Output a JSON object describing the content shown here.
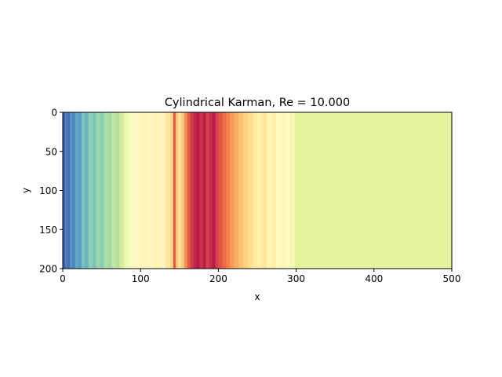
{
  "chart_data": {
    "type": "heatmap",
    "title": "Cylindrical Karman, Re = 10.000",
    "xlabel": "x",
    "ylabel": "y",
    "xlim": [
      0,
      500
    ],
    "ylim": [
      200,
      0
    ],
    "y_inverted": true,
    "x_ticks": [
      0,
      100,
      200,
      300,
      400,
      500
    ],
    "y_ticks": [
      0,
      50,
      100,
      150,
      200
    ],
    "colormap": "Spectral",
    "grid": false,
    "legend": "none",
    "field_varies_along": "x",
    "bands": [
      {
        "x0": 0,
        "x1": 3,
        "color": "#3b62ad"
      },
      {
        "x0": 3,
        "x1": 6,
        "color": "#4f7fb9"
      },
      {
        "x0": 6,
        "x1": 9,
        "color": "#3f6fb3"
      },
      {
        "x0": 9,
        "x1": 12,
        "color": "#5b90c0"
      },
      {
        "x0": 12,
        "x1": 16,
        "color": "#4a89bd"
      },
      {
        "x0": 16,
        "x1": 20,
        "color": "#66a7c4"
      },
      {
        "x0": 20,
        "x1": 24,
        "color": "#55a0c0"
      },
      {
        "x0": 24,
        "x1": 28,
        "color": "#7cc1bf"
      },
      {
        "x0": 28,
        "x1": 33,
        "color": "#6bb4c0"
      },
      {
        "x0": 33,
        "x1": 38,
        "color": "#8fcfb8"
      },
      {
        "x0": 38,
        "x1": 43,
        "color": "#7ec6bc"
      },
      {
        "x0": 43,
        "x1": 48,
        "color": "#9dd7a8"
      },
      {
        "x0": 48,
        "x1": 53,
        "color": "#88cdb4"
      },
      {
        "x0": 53,
        "x1": 58,
        "color": "#b0dea2"
      },
      {
        "x0": 58,
        "x1": 63,
        "color": "#a3d9a4"
      },
      {
        "x0": 63,
        "x1": 68,
        "color": "#c4e79e"
      },
      {
        "x0": 68,
        "x1": 73,
        "color": "#b5e0a0"
      },
      {
        "x0": 73,
        "x1": 79,
        "color": "#d6ee9c"
      },
      {
        "x0": 79,
        "x1": 85,
        "color": "#eef8b2"
      },
      {
        "x0": 85,
        "x1": 92,
        "color": "#f7fbc0"
      },
      {
        "x0": 92,
        "x1": 100,
        "color": "#fbf8c0"
      },
      {
        "x0": 100,
        "x1": 108,
        "color": "#fff5b8"
      },
      {
        "x0": 108,
        "x1": 116,
        "color": "#fdf7c2"
      },
      {
        "x0": 116,
        "x1": 124,
        "color": "#fff3b2"
      },
      {
        "x0": 124,
        "x1": 132,
        "color": "#fbf4bc"
      },
      {
        "x0": 132,
        "x1": 138,
        "color": "#fde7a0"
      },
      {
        "x0": 138,
        "x1": 142,
        "color": "#fdd888"
      },
      {
        "x0": 142,
        "x1": 145,
        "color": "#e8553e"
      },
      {
        "x0": 145,
        "x1": 148,
        "color": "#fdbf70"
      },
      {
        "x0": 148,
        "x1": 152,
        "color": "#fee79c"
      },
      {
        "x0": 152,
        "x1": 156,
        "color": "#fdc877"
      },
      {
        "x0": 156,
        "x1": 160,
        "color": "#f68f55"
      },
      {
        "x0": 160,
        "x1": 164,
        "color": "#e45a43"
      },
      {
        "x0": 164,
        "x1": 168,
        "color": "#cf3a4d"
      },
      {
        "x0": 168,
        "x1": 172,
        "color": "#c0254a"
      },
      {
        "x0": 172,
        "x1": 176,
        "color": "#b8174a"
      },
      {
        "x0": 176,
        "x1": 180,
        "color": "#cc344c"
      },
      {
        "x0": 180,
        "x1": 184,
        "color": "#b81c48"
      },
      {
        "x0": 184,
        "x1": 188,
        "color": "#d6404e"
      },
      {
        "x0": 188,
        "x1": 192,
        "color": "#c42c4a"
      },
      {
        "x0": 192,
        "x1": 196,
        "color": "#b01e46"
      },
      {
        "x0": 196,
        "x1": 200,
        "color": "#d43d4f"
      },
      {
        "x0": 200,
        "x1": 205,
        "color": "#e05545"
      },
      {
        "x0": 205,
        "x1": 210,
        "color": "#ec6a48"
      },
      {
        "x0": 210,
        "x1": 215,
        "color": "#f3824f"
      },
      {
        "x0": 215,
        "x1": 220,
        "color": "#f79a5c"
      },
      {
        "x0": 220,
        "x1": 226,
        "color": "#fbad66"
      },
      {
        "x0": 226,
        "x1": 232,
        "color": "#fdbf72"
      },
      {
        "x0": 232,
        "x1": 238,
        "color": "#fdd084"
      },
      {
        "x0": 238,
        "x1": 244,
        "color": "#fee090"
      },
      {
        "x0": 244,
        "x1": 250,
        "color": "#feea9e"
      },
      {
        "x0": 250,
        "x1": 256,
        "color": "#fff1ac"
      },
      {
        "x0": 256,
        "x1": 262,
        "color": "#fee79a"
      },
      {
        "x0": 262,
        "x1": 268,
        "color": "#fff5b6"
      },
      {
        "x0": 268,
        "x1": 274,
        "color": "#feefaa"
      },
      {
        "x0": 274,
        "x1": 280,
        "color": "#fffac0"
      },
      {
        "x0": 280,
        "x1": 286,
        "color": "#fff6ba"
      },
      {
        "x0": 286,
        "x1": 292,
        "color": "#fbfbc2"
      },
      {
        "x0": 292,
        "x1": 298,
        "color": "#f2f9b4"
      },
      {
        "x0": 298,
        "x1": 500,
        "color": "#e6f59d"
      }
    ]
  }
}
